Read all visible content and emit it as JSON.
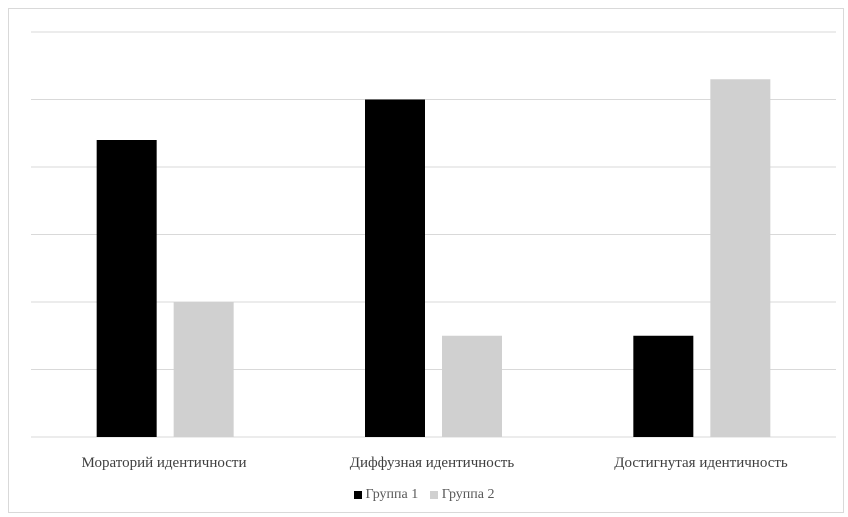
{
  "chart_data": {
    "type": "bar",
    "categories": [
      "Мораторий идентичности",
      "Диффузная идентичность",
      "Достигнутая идентичность"
    ],
    "series": [
      {
        "name": "Группа 1",
        "color": "#000000",
        "values": [
          44,
          50,
          15
        ]
      },
      {
        "name": "Группа 2",
        "color": "#d0d0d0",
        "values": [
          20,
          15,
          53
        ]
      }
    ],
    "ylim": [
      0,
      60
    ],
    "grid": true,
    "legend_position": "bottom"
  }
}
